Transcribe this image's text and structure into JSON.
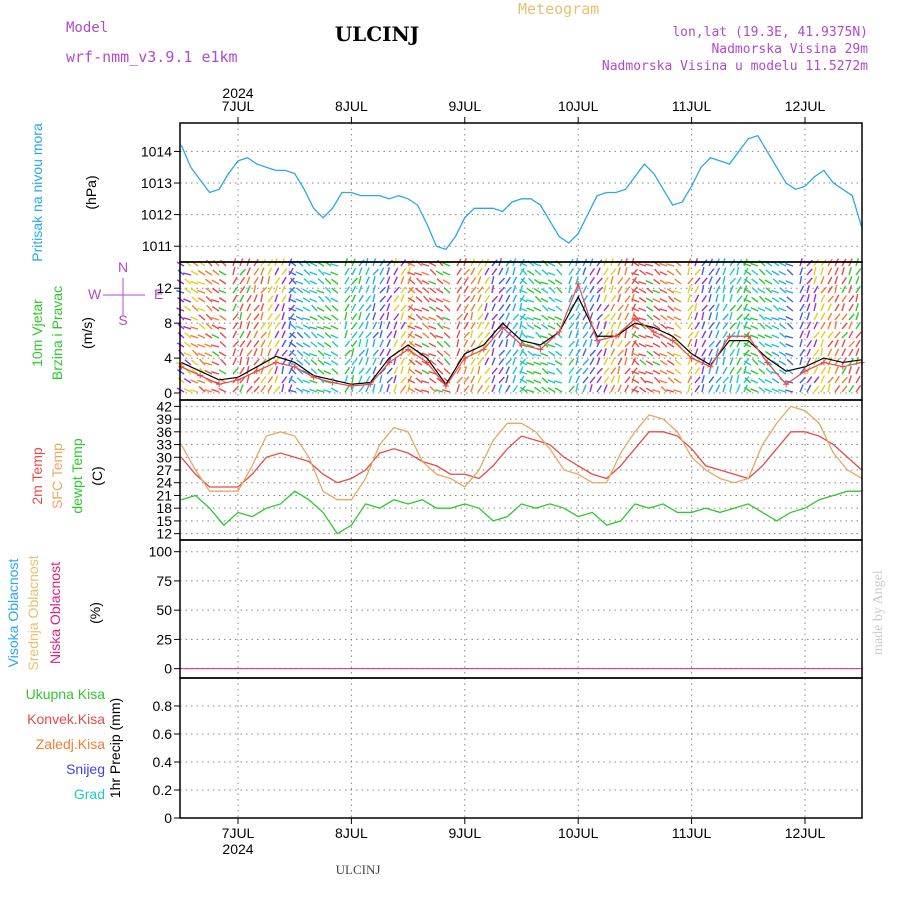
{
  "header": {
    "title": "ULCINJ",
    "meteogram_label": "Meteogram",
    "model_label": "Model",
    "model_name": "wrf-nmm_v3.9.1 e1km",
    "location": [
      "lon,lat (19.3E, 41.9375N)",
      "Nadmorska Visina 29m",
      "Nadmorska Visina u modelu 11.5272m"
    ],
    "footer": "ULCINJ",
    "signature": "made by Angel"
  },
  "colors": {
    "pressure": "#2aa8e8",
    "temp2m": "#e84a4a",
    "sfc": "#e8a860",
    "dewpt": "#2ec82e",
    "model": "#b04ad0",
    "high_cloud": "#2aa8e8",
    "mid_cloud": "#e8c070",
    "low_cloud": "#e02080",
    "total_rain": "#2ec82e",
    "conv_rain": "#e84a4a",
    "frozen": "#f08030",
    "snow": "#4040e0",
    "hail": "#20c8c8"
  },
  "chart_data": [
    {
      "type": "line",
      "panel": "pressure",
      "ylabel": [
        "Pritisak na nivou mora",
        "(hPa)"
      ],
      "yticks": [
        1011,
        1012,
        1013,
        1014
      ],
      "ylim": [
        1010.5,
        1014.9
      ],
      "x": [
        0,
        2,
        4,
        6,
        8,
        10,
        12,
        14,
        16,
        18,
        20,
        22,
        24,
        26,
        28,
        30,
        32,
        34,
        36,
        38,
        40,
        42,
        44,
        46,
        48,
        50,
        52,
        54,
        56,
        58,
        60,
        62,
        64,
        66,
        68,
        70,
        72,
        74,
        76,
        78,
        80,
        82,
        84,
        86,
        88,
        90,
        92,
        94,
        96,
        98,
        100,
        102,
        104,
        106,
        108,
        110,
        112,
        114,
        116,
        118,
        120,
        122,
        124,
        126,
        128,
        130,
        132,
        134,
        136,
        138,
        140,
        142,
        144
      ],
      "values": [
        1014.2,
        1013.5,
        1013.1,
        1012.7,
        1012.8,
        1013.3,
        1013.7,
        1013.8,
        1013.6,
        1013.5,
        1013.4,
        1013.4,
        1013.3,
        1012.8,
        1012.2,
        1011.9,
        1012.2,
        1012.7,
        1012.7,
        1012.6,
        1012.6,
        1012.6,
        1012.5,
        1012.6,
        1012.5,
        1012.3,
        1011.7,
        1011.0,
        1010.9,
        1011.3,
        1011.9,
        1012.2,
        1012.2,
        1012.2,
        1012.1,
        1012.4,
        1012.5,
        1012.5,
        1012.3,
        1011.8,
        1011.3,
        1011.1,
        1011.4,
        1012.0,
        1012.6,
        1012.7,
        1012.7,
        1012.8,
        1013.2,
        1013.6,
        1013.3,
        1012.8,
        1012.3,
        1012.4,
        1012.9,
        1013.5,
        1013.8,
        1013.7,
        1013.6,
        1014.0,
        1014.4,
        1014.5,
        1014.0,
        1013.5,
        1013.0,
        1012.8,
        1012.9,
        1013.2,
        1013.4,
        1013.0,
        1012.8,
        1012.6,
        1011.6
      ]
    },
    {
      "type": "line",
      "panel": "wind",
      "ylabel": [
        "10m Vjetar",
        "Brzina i Pravac",
        "(m/s)"
      ],
      "compass": [
        "N",
        "W",
        "E",
        "S"
      ],
      "yticks": [
        0,
        4,
        8,
        12
      ],
      "ylim": [
        -0.8,
        15
      ],
      "x": [
        0,
        4,
        8,
        12,
        16,
        20,
        24,
        28,
        32,
        36,
        40,
        44,
        48,
        52,
        56,
        60,
        64,
        68,
        72,
        76,
        80,
        84,
        88,
        92,
        96,
        100,
        104,
        108,
        112,
        116,
        120,
        124,
        128,
        132,
        136,
        140,
        144
      ],
      "series": [
        {
          "values": [
            3.5,
            2.5,
            1.5,
            1.8,
            3.0,
            4.2,
            3.5,
            2.0,
            1.5,
            1.0,
            1.2,
            4.0,
            5.5,
            4.0,
            1.0,
            4.5,
            5.5,
            8.0,
            6.0,
            5.5,
            7.0,
            11.0,
            6.5,
            6.5,
            8.0,
            7.5,
            6.5,
            4.5,
            3.2,
            6.0,
            6.0,
            4.0,
            2.5,
            3.0,
            4.0,
            3.5,
            3.8
          ]
        },
        {
          "values": [
            3.0,
            2.0,
            1.0,
            1.5,
            2.5,
            3.5,
            3.0,
            1.8,
            1.2,
            0.8,
            1.0,
            3.5,
            5.0,
            3.5,
            0.8,
            4.0,
            5.0,
            7.5,
            5.5,
            5.0,
            7.0,
            12.5,
            6.0,
            6.5,
            8.5,
            7.0,
            6.0,
            4.0,
            3.0,
            6.5,
            6.5,
            3.5,
            1.0,
            2.5,
            3.5,
            3.0,
            3.5
          ]
        }
      ]
    },
    {
      "type": "line",
      "panel": "temperature",
      "ylabel": [
        "2m Temp",
        "SFC Temp",
        "dewpt Temp",
        "(C)"
      ],
      "yticks": [
        12,
        15,
        18,
        21,
        24,
        27,
        30,
        33,
        36,
        39,
        42
      ],
      "ylim": [
        10.5,
        43.5
      ],
      "x": [
        0,
        3,
        6,
        9,
        12,
        15,
        18,
        21,
        24,
        27,
        30,
        33,
        36,
        39,
        42,
        45,
        48,
        51,
        54,
        57,
        60,
        63,
        66,
        69,
        72,
        75,
        78,
        81,
        84,
        87,
        90,
        93,
        96,
        99,
        102,
        105,
        108,
        111,
        114,
        117,
        120,
        123,
        126,
        129,
        132,
        135,
        138,
        141,
        144
      ],
      "series": [
        {
          "name": "2m Temp",
          "values": [
            30,
            26,
            23,
            23,
            23,
            26,
            30,
            31,
            30,
            29,
            26,
            24,
            25,
            27,
            31,
            32,
            31,
            29,
            28,
            26,
            26,
            25,
            28,
            32,
            35,
            34,
            33,
            30,
            28,
            26,
            25,
            28,
            32,
            36,
            36,
            35,
            32,
            28,
            27,
            26,
            25,
            28,
            32,
            36,
            36,
            35,
            33,
            30,
            27
          ]
        },
        {
          "name": "SFC Temp",
          "values": [
            33,
            27,
            22,
            22,
            22,
            28,
            35,
            36,
            35,
            30,
            22,
            20,
            20,
            25,
            33,
            37,
            36,
            29,
            26,
            25,
            23,
            27,
            34,
            38,
            38,
            36,
            32,
            27,
            26,
            24,
            24,
            31,
            36,
            40,
            39,
            36,
            30,
            27,
            25,
            24,
            25,
            33,
            38,
            42,
            41,
            38,
            31,
            27,
            25
          ]
        },
        {
          "name": "dewpt Temp",
          "values": [
            20,
            21,
            18,
            14,
            17,
            16,
            18,
            19,
            22,
            20,
            17,
            12,
            14,
            19,
            18,
            20,
            19,
            20,
            18,
            18,
            19,
            18,
            15,
            16,
            19,
            18,
            19,
            18,
            16,
            17,
            14,
            15,
            19,
            18,
            19,
            17,
            17,
            18,
            17,
            18,
            19,
            17,
            15,
            17,
            18,
            20,
            21,
            22,
            22
          ]
        }
      ]
    },
    {
      "type": "line",
      "panel": "cloud",
      "ylabel": [
        "Visoka Oblacnost",
        "Srednja Oblacnost",
        "Niska Oblacnost",
        "(%)"
      ],
      "yticks": [
        0,
        25,
        50,
        75,
        100
      ],
      "ylim": [
        -8,
        110
      ],
      "series": [
        {
          "name": "Visoka Oblacnost",
          "values": [
            0,
            0
          ]
        },
        {
          "name": "Srednja Oblacnost",
          "values": [
            0,
            0
          ]
        },
        {
          "name": "Niska Oblacnost",
          "values": [
            0,
            0
          ]
        }
      ]
    },
    {
      "type": "line",
      "panel": "precip",
      "ylabel": [
        "1hr Precip (mm)"
      ],
      "legend": [
        "Ukupna Kisa",
        "Konvek.Kisa",
        "Zaledj.Kisa",
        "Snijeg",
        "Grad"
      ],
      "yticks": [
        0,
        0.2,
        0.4,
        0.6,
        0.8
      ],
      "ylim": [
        0,
        1.0
      ],
      "series": [
        {
          "name": "Ukupna Kisa",
          "values": [
            0,
            0
          ]
        }
      ]
    }
  ],
  "time_axis": {
    "year": "2024",
    "days": [
      "7JUL",
      "8JUL",
      "9JUL",
      "10JUL",
      "11JUL",
      "12JUL"
    ],
    "start_day_offset": -0.5
  }
}
